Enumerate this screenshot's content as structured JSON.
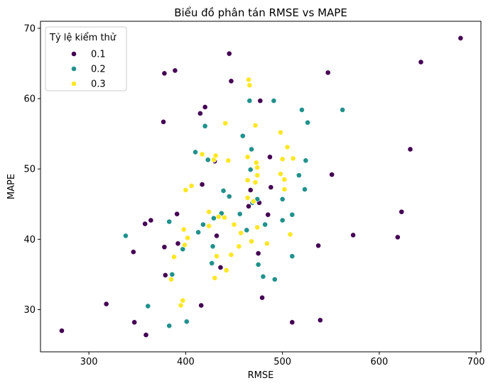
{
  "chart_data": {
    "type": "scatter",
    "title": "Biểu đồ phân tán RMSE vs MAPE",
    "xlabel": "RMSE",
    "ylabel": "MAPE",
    "xlim": [
      250,
      705
    ],
    "ylim": [
      24,
      71
    ],
    "x_ticks": [
      300,
      400,
      500,
      600,
      700
    ],
    "y_ticks": [
      30,
      40,
      50,
      60,
      70
    ],
    "x_tick_labels": [
      "300",
      "400",
      "500",
      "600",
      "700"
    ],
    "y_tick_labels": [
      "30",
      "40",
      "50",
      "60",
      "70"
    ],
    "grid": false,
    "legend": {
      "title": "Tỷ lệ kiểm thử",
      "placement": "top-left",
      "entries": [
        "0.1",
        "0.2",
        "0.3"
      ]
    },
    "series": [
      {
        "name": "0.1",
        "color": "#440154",
        "points": [
          [
            272,
            27.0
          ],
          [
            318,
            30.8
          ],
          [
            346,
            38.2
          ],
          [
            347,
            28.2
          ],
          [
            358,
            42.2
          ],
          [
            359,
            26.4
          ],
          [
            364,
            42.7
          ],
          [
            377,
            56.7
          ],
          [
            378,
            63.6
          ],
          [
            378,
            38.9
          ],
          [
            379,
            34.9
          ],
          [
            389,
            64.0
          ],
          [
            391,
            43.6
          ],
          [
            392,
            39.4
          ],
          [
            415,
            57.9
          ],
          [
            416,
            30.6
          ],
          [
            417,
            47.8
          ],
          [
            420,
            58.8
          ],
          [
            430,
            51.1
          ],
          [
            432,
            40.5
          ],
          [
            436,
            36.0
          ],
          [
            445,
            66.4
          ],
          [
            447,
            62.5
          ],
          [
            465,
            44.7
          ],
          [
            467,
            47.0
          ],
          [
            475,
            38.0
          ],
          [
            476,
            45.2
          ],
          [
            477,
            59.7
          ],
          [
            479,
            31.7
          ],
          [
            485,
            43.5
          ],
          [
            487,
            51.7
          ],
          [
            488,
            47.4
          ],
          [
            510,
            28.2
          ],
          [
            537,
            39.1
          ],
          [
            539,
            28.5
          ],
          [
            547,
            63.7
          ],
          [
            551,
            49.2
          ],
          [
            573,
            40.6
          ],
          [
            619,
            40.3
          ],
          [
            623,
            43.9
          ],
          [
            632,
            52.8
          ],
          [
            643,
            65.2
          ],
          [
            684,
            68.6
          ]
        ]
      },
      {
        "name": "0.2",
        "color": "#21918c",
        "points": [
          [
            338,
            40.5
          ],
          [
            361,
            30.5
          ],
          [
            383,
            42.5
          ],
          [
            383,
            27.7
          ],
          [
            386,
            35.0
          ],
          [
            397,
            38.6
          ],
          [
            401,
            28.3
          ],
          [
            410,
            52.4
          ],
          [
            413,
            41.0
          ],
          [
            418,
            42.1
          ],
          [
            420,
            56.1
          ],
          [
            423,
            51.3
          ],
          [
            427,
            36.6
          ],
          [
            428,
            39.0
          ],
          [
            429,
            43.0
          ],
          [
            437,
            43.7
          ],
          [
            439,
            46.9
          ],
          [
            445,
            46.1
          ],
          [
            456,
            43.6
          ],
          [
            459,
            54.7
          ],
          [
            463,
            41.3
          ],
          [
            466,
            59.7
          ],
          [
            467,
            49.9
          ],
          [
            468,
            52.8
          ],
          [
            469,
            45.2
          ],
          [
            474,
            45.7
          ],
          [
            475,
            36.4
          ],
          [
            480,
            34.7
          ],
          [
            482,
            42.1
          ],
          [
            491,
            59.7
          ],
          [
            492,
            34.3
          ],
          [
            500,
            45.7
          ],
          [
            500,
            42.7
          ],
          [
            510,
            43.5
          ],
          [
            510,
            37.6
          ],
          [
            517,
            49.1
          ],
          [
            520,
            58.4
          ],
          [
            523,
            47.1
          ],
          [
            524,
            51.2
          ],
          [
            526,
            56.6
          ],
          [
            562,
            58.4
          ]
        ]
      },
      {
        "name": "0.3",
        "color": "#fde725",
        "points": [
          [
            385,
            34.3
          ],
          [
            388,
            37.5
          ],
          [
            395,
            30.6
          ],
          [
            397,
            31.3
          ],
          [
            398,
            41.4
          ],
          [
            400,
            47.0
          ],
          [
            399,
            39.2
          ],
          [
            402,
            40.2
          ],
          [
            406,
            47.6
          ],
          [
            417,
            52.1
          ],
          [
            424,
            41.9
          ],
          [
            424,
            43.9
          ],
          [
            429,
            51.3
          ],
          [
            430,
            34.5
          ],
          [
            432,
            37.6
          ],
          [
            431,
            51.9
          ],
          [
            434,
            43.2
          ],
          [
            440,
            43.1
          ],
          [
            441,
            56.5
          ],
          [
            442,
            35.6
          ],
          [
            444,
            51.2
          ],
          [
            447,
            37.8
          ],
          [
            450,
            42.1
          ],
          [
            455,
            39.0
          ],
          [
            457,
            40.9
          ],
          [
            464,
            45.9
          ],
          [
            464,
            48.4
          ],
          [
            464,
            51.7
          ],
          [
            465,
            62.7
          ],
          [
            466,
            61.9
          ],
          [
            468,
            39.7
          ],
          [
            470,
            45.4
          ],
          [
            472,
            56.2
          ],
          [
            472,
            48.1
          ],
          [
            473,
            50.9
          ],
          [
            474,
            49.1
          ],
          [
            474,
            50.2
          ],
          [
            474,
            41.7
          ],
          [
            484,
            39.4
          ],
          [
            498,
            55.2
          ],
          [
            498,
            49.3
          ],
          [
            500,
            51.4
          ],
          [
            502,
            48.5
          ],
          [
            502,
            47.1
          ],
          [
            505,
            53.1
          ],
          [
            508,
            40.7
          ],
          [
            511,
            51.5
          ]
        ]
      }
    ]
  }
}
